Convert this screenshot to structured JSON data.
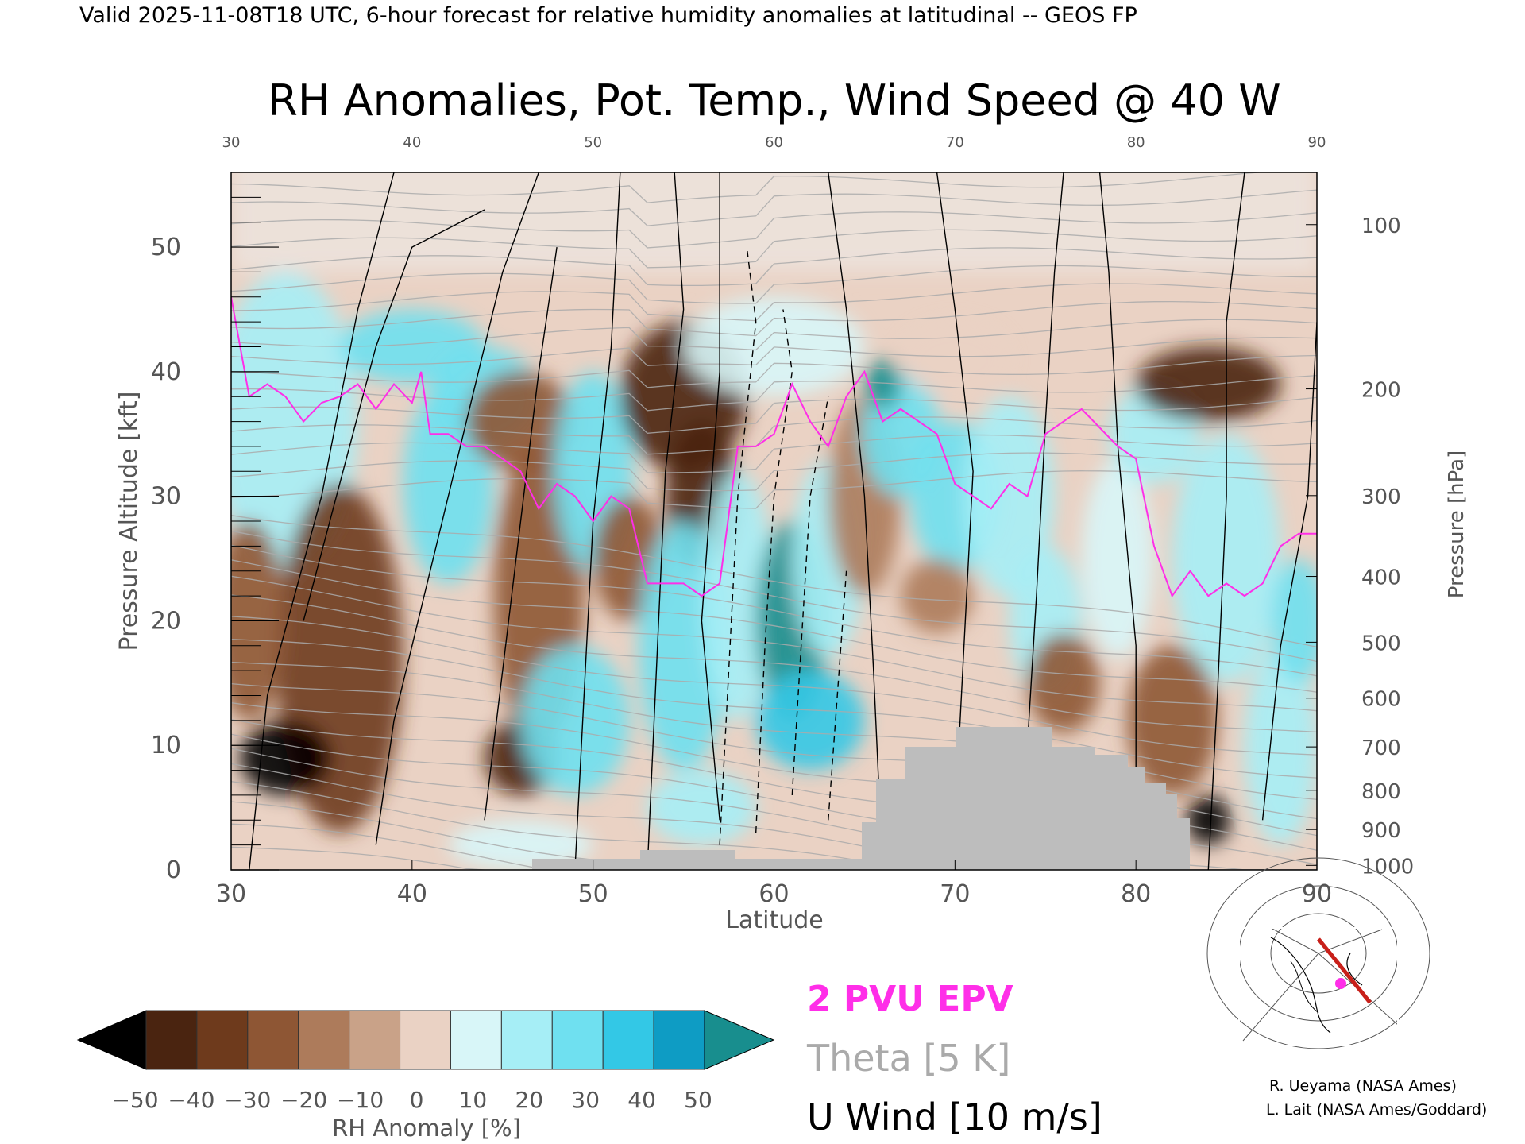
{
  "header": {
    "valid_line": "Valid 2025-11-08T18 UTC, 6-hour forecast for relative humidity anomalies at latitudinal -- GEOS FP"
  },
  "chart_data": {
    "type": "heatmap",
    "title": "RH Anomalies, Pot. Temp., Wind Speed @ 40 W",
    "xlabel": "Latitude",
    "ylabel_left": "Pressure Altitude [kft]",
    "ylabel_right": "Pressure [hPa]",
    "xlim": [
      30,
      90
    ],
    "ylim": [
      0,
      56
    ],
    "x_ticks": [
      30,
      40,
      50,
      60,
      70,
      80,
      90
    ],
    "x_tick_labels": [
      "30",
      "40",
      "50",
      "60",
      "70",
      "80",
      "90"
    ],
    "y_ticks": [
      0,
      10,
      20,
      30,
      40,
      50
    ],
    "y_tick_labels": [
      "0",
      "10",
      "20",
      "30",
      "40",
      "50"
    ],
    "pressure_ticks": [
      {
        "hpa": 100,
        "label": "100"
      },
      {
        "hpa": 200,
        "label": "200"
      },
      {
        "hpa": 300,
        "label": "300"
      },
      {
        "hpa": 400,
        "label": "400"
      },
      {
        "hpa": 500,
        "label": "500"
      },
      {
        "hpa": 600,
        "label": "600"
      },
      {
        "hpa": 700,
        "label": "700"
      },
      {
        "hpa": 800,
        "label": "800"
      },
      {
        "hpa": 900,
        "label": "900"
      },
      {
        "hpa": 1000,
        "label": "1000"
      }
    ],
    "colorbar": {
      "label": "RH Anomaly [%]",
      "ticks": [
        -50,
        -40,
        -30,
        -20,
        -10,
        0,
        10,
        20,
        30,
        40,
        50
      ],
      "tick_labels": [
        "−50",
        "−40",
        "−30",
        "−20",
        "−10",
        "0",
        "10",
        "20",
        "30",
        "40",
        "50"
      ],
      "colors": [
        "#4a2410",
        "#6e3a1c",
        "#8e5634",
        "#ad7b5b",
        "#c9a288",
        "#ead2c4",
        "#d8f6f8",
        "#a6eef6",
        "#6fe0f0",
        "#33c8e6",
        "#0e9cc4"
      ],
      "under_color": "#000000",
      "over_color": "#188e8e"
    },
    "legend": [
      {
        "label": "2 PVU EPV",
        "color": "#ff2ee8"
      },
      {
        "label": "Theta [5 K]",
        "color": "#aaaaaa"
      },
      {
        "label": "U Wind [10 m/s]",
        "color": "#000000"
      }
    ],
    "terrain_color": "#bdbdbd",
    "epv_2pvu_line": {
      "lat": [
        30,
        31,
        32,
        33,
        34,
        35,
        36,
        37,
        38,
        39,
        40,
        40.5,
        41,
        42,
        43,
        44,
        45,
        46,
        47,
        48,
        49,
        50,
        51,
        52,
        53,
        54,
        55,
        56,
        57,
        58,
        59,
        60,
        61,
        62,
        63,
        64,
        65,
        66,
        67,
        68,
        69,
        70,
        71,
        72,
        73,
        74,
        75,
        76,
        77,
        78,
        79,
        80,
        81,
        82,
        83,
        84,
        85,
        86,
        87,
        88,
        89,
        90
      ],
      "kft": [
        46,
        38,
        39,
        38,
        36,
        37.5,
        38,
        39,
        37,
        39,
        37.5,
        40,
        35,
        35,
        34,
        34,
        33,
        32,
        29,
        31,
        30,
        28,
        30,
        29,
        23,
        23,
        23,
        22,
        23,
        34,
        34,
        35,
        39,
        36,
        34,
        38,
        40,
        36,
        37,
        36,
        35,
        31,
        30,
        29,
        31,
        30,
        35,
        36,
        37,
        35.5,
        34,
        33,
        26,
        22,
        24,
        22,
        23,
        22,
        23,
        26,
        27,
        27
      ]
    },
    "theta_contours_K": [
      300,
      310,
      320,
      330,
      340,
      360,
      380,
      400,
      410,
      420
    ],
    "u_wind_contours_mps": [
      -50,
      -30,
      -10,
      0,
      10,
      30
    ],
    "annotations": {
      "map_inset": "section line along 40 W",
      "credits": [
        "R. Ueyama (NASA Ames)",
        "L. Lait (NASA Ames/Goddard)"
      ]
    }
  }
}
